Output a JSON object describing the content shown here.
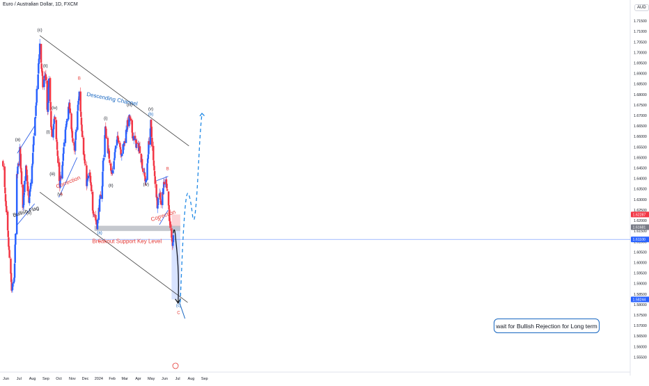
{
  "header": {
    "title": "Euro / Australian Dollar, 1D, FXCM",
    "currency_button": "AUD"
  },
  "chart_data": {
    "type": "candlestick",
    "title": "Euro / Australian Dollar, 1D, FXCM",
    "ylim": [
      1.5495,
      1.719
    ],
    "x_ticks": [
      "Jun",
      "Jul",
      "Aug",
      "Sep",
      "Oct",
      "Nov",
      "Dec",
      "2024",
      "Feb",
      "Mar",
      "Apr",
      "May",
      "Jun",
      "Jul",
      "Aug",
      "Sep"
    ],
    "y_ticks": [
      "1.71500",
      "1.71000",
      "1.70500",
      "1.70000",
      "1.69500",
      "1.69000",
      "1.68500",
      "1.68000",
      "1.67500",
      "1.67000",
      "1.66500",
      "1.66000",
      "1.65500",
      "1.65000",
      "1.64500",
      "1.64000",
      "1.63500",
      "1.63000",
      "1.62500",
      "1.62000",
      "1.61500",
      "1.61000",
      "1.60500",
      "1.60000",
      "1.59500",
      "1.59000",
      "1.58500",
      "1.58000",
      "1.57500",
      "1.57000",
      "1.56500",
      "1.56000",
      "1.55500"
    ],
    "price_labels": {
      "upper": "1.62287",
      "mid": "1.61681",
      "current": "1.61100",
      "target": "1.58244"
    },
    "price_label_colors": {
      "upper": "#f23645",
      "mid": "#787b86",
      "current": "#2962ff",
      "target": "#2962ff"
    },
    "colors": {
      "up": "#2962ff",
      "down": "#f23645",
      "channel": "#3d3d3d",
      "support": "#b2b5be",
      "annotation_blue": "#1565c0",
      "annotation_red": "#e53935"
    },
    "path_points": [
      {
        "d": "2023-05-25",
        "p": 1.648
      },
      {
        "d": "2023-06-01",
        "p": 1.625
      },
      {
        "d": "2023-06-08",
        "p": 1.605
      },
      {
        "d": "2023-06-14",
        "p": 1.587
      },
      {
        "d": "2023-06-20",
        "p": 1.591
      },
      {
        "d": "2023-06-26",
        "p": 1.64
      },
      {
        "d": "2023-07-03",
        "p": 1.654
      },
      {
        "d": "2023-07-10",
        "p": 1.627
      },
      {
        "d": "2023-07-17",
        "p": 1.645
      },
      {
        "d": "2023-07-24",
        "p": 1.628
      },
      {
        "d": "2023-07-31",
        "p": 1.645
      },
      {
        "d": "2023-08-07",
        "p": 1.668
      },
      {
        "d": "2023-08-14",
        "p": 1.69
      },
      {
        "d": "2023-08-18",
        "p": 1.704
      },
      {
        "d": "2023-08-25",
        "p": 1.684
      },
      {
        "d": "2023-08-31",
        "p": 1.69
      },
      {
        "d": "2023-09-05",
        "p": 1.67
      },
      {
        "d": "2023-09-08",
        "p": 1.688
      },
      {
        "d": "2023-09-15",
        "p": 1.658
      },
      {
        "d": "2023-09-22",
        "p": 1.67
      },
      {
        "d": "2023-09-29",
        "p": 1.646
      },
      {
        "d": "2023-10-03",
        "p": 1.635
      },
      {
        "d": "2023-10-10",
        "p": 1.65
      },
      {
        "d": "2023-10-20",
        "p": 1.67
      },
      {
        "d": "2023-10-26",
        "p": 1.675
      },
      {
        "d": "2023-11-01",
        "p": 1.658
      },
      {
        "d": "2023-11-06",
        "p": 1.652
      },
      {
        "d": "2023-11-13",
        "p": 1.672
      },
      {
        "d": "2023-11-17",
        "p": 1.681
      },
      {
        "d": "2023-11-27",
        "p": 1.653
      },
      {
        "d": "2023-12-04",
        "p": 1.638
      },
      {
        "d": "2023-12-11",
        "p": 1.642
      },
      {
        "d": "2023-12-18",
        "p": 1.626
      },
      {
        "d": "2023-12-28",
        "p": 1.618
      },
      {
        "d": "2024-01-04",
        "p": 1.63
      },
      {
        "d": "2024-01-08",
        "p": 1.632
      },
      {
        "d": "2024-01-11",
        "p": 1.648
      },
      {
        "d": "2024-01-16",
        "p": 1.664
      },
      {
        "d": "2024-01-22",
        "p": 1.654
      },
      {
        "d": "2024-01-30",
        "p": 1.644
      },
      {
        "d": "2024-02-01",
        "p": 1.642
      },
      {
        "d": "2024-02-08",
        "p": 1.654
      },
      {
        "d": "2024-02-15",
        "p": 1.66
      },
      {
        "d": "2024-02-22",
        "p": 1.652
      },
      {
        "d": "2024-02-28",
        "p": 1.656
      },
      {
        "d": "2024-03-06",
        "p": 1.665
      },
      {
        "d": "2024-03-12",
        "p": 1.669
      },
      {
        "d": "2024-03-20",
        "p": 1.66
      },
      {
        "d": "2024-03-28",
        "p": 1.656
      },
      {
        "d": "2024-04-05",
        "p": 1.654
      },
      {
        "d": "2024-04-12",
        "p": 1.644
      },
      {
        "d": "2024-04-19",
        "p": 1.638
      },
      {
        "d": "2024-04-25",
        "p": 1.656
      },
      {
        "d": "2024-04-30",
        "p": 1.666
      },
      {
        "d": "2024-05-07",
        "p": 1.645
      },
      {
        "d": "2024-05-15",
        "p": 1.628
      },
      {
        "d": "2024-05-20",
        "p": 1.634
      },
      {
        "d": "2024-05-24",
        "p": 1.628
      },
      {
        "d": "2024-05-29",
        "p": 1.636
      },
      {
        "d": "2024-06-05",
        "p": 1.639
      },
      {
        "d": "2024-06-11",
        "p": 1.625
      },
      {
        "d": "2024-06-14",
        "p": 1.615
      },
      {
        "d": "2024-06-18",
        "p": 1.608
      },
      {
        "d": "2024-06-21",
        "p": 1.611
      }
    ],
    "channel": {
      "upper": [
        {
          "d": "2023-08-18",
          "p": 1.708
        },
        {
          "d": "2024-07-27",
          "p": 1.6555
        }
      ],
      "lower": [
        {
          "d": "2023-08-18",
          "p": 1.6335
        },
        {
          "d": "2024-07-24",
          "p": 1.581
        }
      ]
    },
    "support_zone": {
      "d1": "2023-12-22",
      "d2": "2024-07-07",
      "p_top": 1.6175,
      "p_bottom": 1.615
    },
    "trade_zones": {
      "d1": "2024-06-17",
      "d2": "2024-07-07",
      "stop": [
        1.62287,
        1.61681
      ],
      "target": [
        1.61681,
        1.58244
      ]
    },
    "projection_path": [
      {
        "d": "2024-06-21",
        "p": 1.614
      },
      {
        "d": "2024-06-24",
        "p": 1.6165
      },
      {
        "d": "2024-06-27",
        "p": 1.61
      },
      {
        "d": "2024-07-02",
        "p": 1.581
      }
    ],
    "bullish_projection": [
      {
        "d": "2024-07-07",
        "p": 1.581
      },
      {
        "d": "2024-07-14",
        "p": 1.616
      },
      {
        "d": "2024-07-22",
        "p": 1.635
      },
      {
        "d": "2024-07-31",
        "p": 1.63
      },
      {
        "d": "2024-08-07",
        "p": 1.6175
      },
      {
        "d": "2024-08-13",
        "p": 1.628
      },
      {
        "d": "2024-08-17",
        "p": 1.642
      },
      {
        "d": "2024-08-22",
        "p": 1.662
      },
      {
        "d": "2024-08-26",
        "p": 1.671
      }
    ],
    "trendlines": [
      {
        "name": "bullish-flag-top",
        "a": {
          "d": "2023-06-27",
          "p": 1.652
        },
        "b": {
          "d": "2023-08-06",
          "p": 1.665
        }
      },
      {
        "name": "bullish-flag-bottom",
        "a": {
          "d": "2023-06-27",
          "p": 1.618
        },
        "b": {
          "d": "2023-08-06",
          "p": 1.628
        }
      },
      {
        "name": "correction-left",
        "a": {
          "d": "2023-10-01",
          "p": 1.631
        },
        "b": {
          "d": "2023-11-12",
          "p": 1.65
        }
      },
      {
        "name": "correction-right-top",
        "a": {
          "d": "2024-05-14",
          "p": 1.639
        },
        "b": {
          "d": "2024-06-09",
          "p": 1.641
        }
      },
      {
        "name": "correction-right-bottom",
        "a": {
          "d": "2024-05-20",
          "p": 1.618
        },
        "b": {
          "d": "2024-06-09",
          "p": 1.625
        }
      }
    ],
    "annotations": [
      {
        "text": "(c)",
        "d": "2023-08-18",
        "p": 1.71,
        "color": "#131722"
      },
      {
        "text": "(ii)",
        "d": "2023-08-31",
        "p": 1.693,
        "color": "#131722"
      },
      {
        "text": "(i)",
        "d": "2023-09-06",
        "p": 1.6615,
        "color": "#131722"
      },
      {
        "text": "(iv)",
        "d": "2023-09-21",
        "p": 1.673,
        "color": "#131722"
      },
      {
        "text": "(iii)",
        "d": "2023-09-16",
        "p": 1.6415,
        "color": "#131722"
      },
      {
        "text": "(v)",
        "d": "2023-10-03",
        "p": 1.632,
        "color": "#131722"
      },
      {
        "text": "A",
        "d": "2023-10-07",
        "p": 1.632,
        "color": "#e53935"
      },
      {
        "text": "B",
        "d": "2023-11-17",
        "p": 1.687,
        "color": "#e53935"
      },
      {
        "text": "(a)",
        "d": "2023-06-28",
        "p": 1.658,
        "color": "#131722"
      },
      {
        "text": "(b)",
        "d": "2023-07-24",
        "p": 1.623,
        "color": "#131722"
      },
      {
        "text": "(a)",
        "d": "2024-01-03",
        "p": 1.6135,
        "color": "#1565c0"
      },
      {
        "text": "C",
        "d": "2024-01-03",
        "p": 1.6097,
        "color": "#e53935"
      },
      {
        "text": "(i)",
        "d": "2024-01-17",
        "p": 1.668,
        "color": "#131722"
      },
      {
        "text": "(ii)",
        "d": "2024-01-29",
        "p": 1.636,
        "color": "#131722"
      },
      {
        "text": "(iii)",
        "d": "2024-03-12",
        "p": 1.6745,
        "color": "#131722"
      },
      {
        "text": "(iv)",
        "d": "2024-04-19",
        "p": 1.6365,
        "color": "#131722"
      },
      {
        "text": "(v)",
        "d": "2024-04-30",
        "p": 1.6725,
        "color": "#131722"
      },
      {
        "text": "(b)",
        "d": "2024-04-30",
        "p": 1.67,
        "color": "#1565c0"
      },
      {
        "text": "B",
        "d": "2024-06-08",
        "p": 1.644,
        "color": "#e53935"
      },
      {
        "text": "A",
        "d": "2024-05-20",
        "p": 1.6197,
        "color": "#e53935"
      },
      {
        "text": "(c)",
        "d": "2024-07-03",
        "p": 1.579,
        "color": "#1565c0"
      },
      {
        "text": "C",
        "d": "2024-07-03",
        "p": 1.5755,
        "color": "#e53935"
      }
    ],
    "labels": {
      "descending_channel": "Descending Channel",
      "bullish_flag": "Bullish Flag",
      "correction_left": "Correction",
      "correction_right": "Correction",
      "breakout_support": "Breakout Support Key Level",
      "callout": "wait for Bullish Rejection for Long term"
    }
  }
}
